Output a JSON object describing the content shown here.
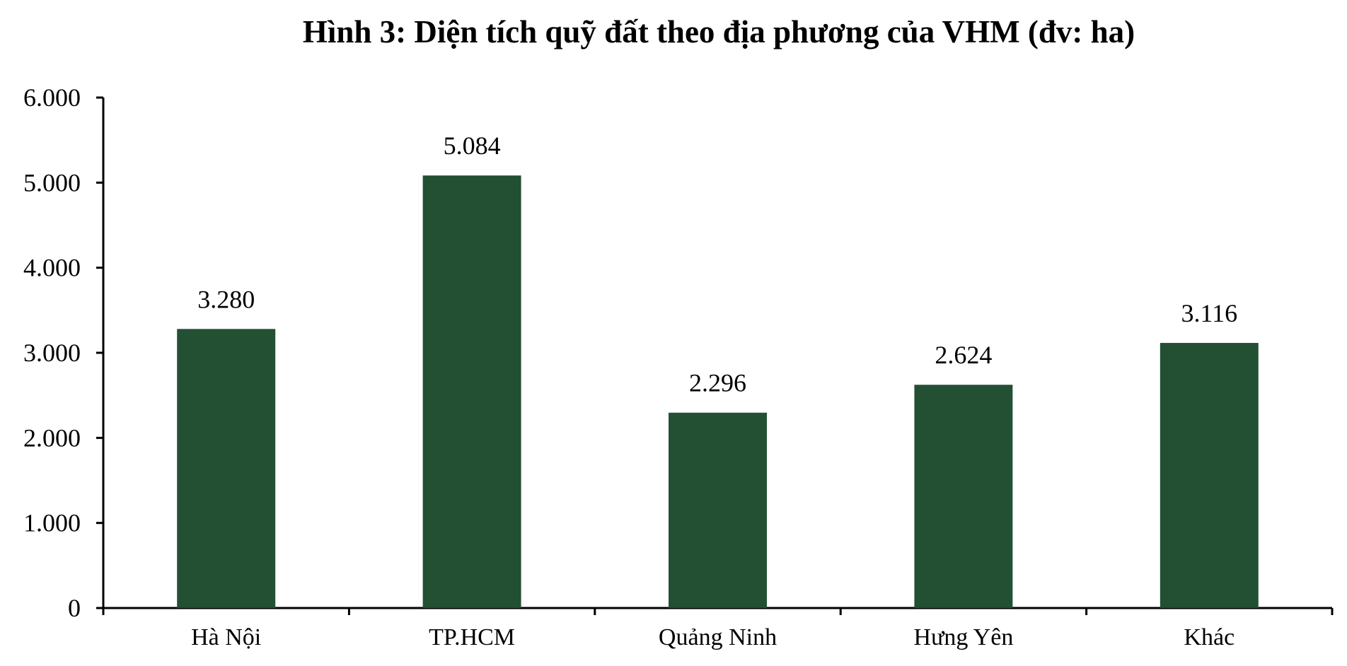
{
  "chart_data": {
    "type": "bar",
    "title": "Hình 3: Diện tích quỹ đất theo địa phương của VHM (đv: ha)",
    "xlabel": "",
    "ylabel": "",
    "categories": [
      "Hà Nội",
      "TP.HCM",
      "Quảng Ninh",
      "Hưng Yên",
      "Khác"
    ],
    "values": [
      3280,
      5084,
      2296,
      2624,
      3116
    ],
    "value_labels": [
      "3.280",
      "5.084",
      "2.296",
      "2.624",
      "3.116"
    ],
    "ylim": [
      0,
      6000
    ],
    "yticks": [
      0,
      1000,
      2000,
      3000,
      4000,
      5000,
      6000
    ],
    "ytick_labels": [
      "0",
      "1.000",
      "2.000",
      "3.000",
      "4.000",
      "5.000",
      "6.000"
    ],
    "bar_color": "#234F33",
    "grid": false,
    "legend": "none"
  }
}
